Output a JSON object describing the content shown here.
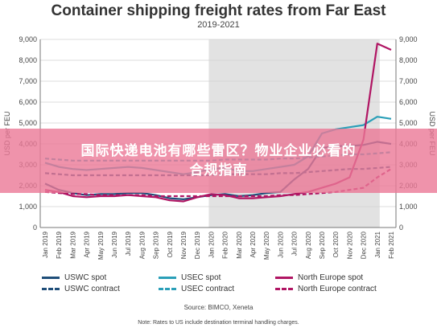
{
  "chart_data": {
    "type": "line",
    "title": "Container shipping freight rates from Far East",
    "subtitle": "2019-2021",
    "ylabel": "USD per FEU",
    "ylim": [
      0,
      9000
    ],
    "yticks": [
      "0",
      "1,000",
      "2,000",
      "3,000",
      "4,000",
      "5,000",
      "6,000",
      "7,000",
      "8,000",
      "9,000"
    ],
    "categories": [
      "Jan 2019",
      "Feb 2019",
      "Mar 2019",
      "Apr 2019",
      "May 2019",
      "Jun 2019",
      "Jul 2019",
      "Aug 2019",
      "Sep 2019",
      "Oct 2019",
      "Nov 2019",
      "Dec 2019",
      "Jan 2020",
      "Feb 2020",
      "Mar 2020",
      "Apr 2020",
      "May 2020",
      "Jun 2020",
      "Jul 2020",
      "Aug 2020",
      "Sep 2020",
      "Oct 2020",
      "Nov 2020",
      "Dec 2020",
      "Jan 2021",
      "Feb 2021"
    ],
    "shaded_region": [
      "Jan 2020",
      "Jan 2021"
    ],
    "series": [
      {
        "name": "USWC spot",
        "color": "#1f4e79",
        "dashed": false,
        "values": [
          2100,
          1800,
          1650,
          1550,
          1600,
          1600,
          1650,
          1650,
          1550,
          1400,
          1350,
          1450,
          1550,
          1600,
          1500,
          1550,
          1650,
          1700,
          2300,
          2800,
          3800,
          3900,
          3900,
          3950,
          4100,
          4000
        ]
      },
      {
        "name": "USWC contract",
        "color": "#1f4e79",
        "dashed": true,
        "values": [
          2600,
          2550,
          2500,
          2500,
          2500,
          2500,
          2500,
          2500,
          2500,
          2500,
          2500,
          2500,
          2500,
          2550,
          2550,
          2550,
          2550,
          2600,
          2600,
          2650,
          2700,
          2750,
          2800,
          2800,
          2850,
          2900
        ]
      },
      {
        "name": "USEC spot",
        "color": "#2a9fb8",
        "dashed": false,
        "values": [
          3100,
          2900,
          2800,
          2750,
          2800,
          2850,
          2900,
          2850,
          2750,
          2650,
          2550,
          2650,
          2800,
          2850,
          2700,
          2700,
          2800,
          2900,
          3000,
          3400,
          4500,
          4700,
          4800,
          4900,
          5300,
          5200
        ]
      },
      {
        "name": "USEC contract",
        "color": "#2a9fb8",
        "dashed": true,
        "values": [
          3300,
          3250,
          3200,
          3200,
          3200,
          3200,
          3200,
          3200,
          3200,
          3200,
          3200,
          3200,
          3200,
          3250,
          3250,
          3250,
          3250,
          3300,
          3300,
          3350,
          3400,
          3450,
          3500,
          3500,
          3550,
          3600
        ]
      },
      {
        "name": "North Europe spot",
        "color": "#b01563",
        "dashed": false,
        "values": [
          1800,
          1700,
          1500,
          1450,
          1500,
          1500,
          1550,
          1500,
          1450,
          1300,
          1250,
          1450,
          1600,
          1550,
          1400,
          1400,
          1450,
          1500,
          1600,
          1700,
          1900,
          2100,
          2400,
          4200,
          8800,
          8500
        ]
      },
      {
        "name": "North Europe contract",
        "color": "#b01563",
        "dashed": true,
        "values": [
          1700,
          1650,
          1600,
          1600,
          1550,
          1550,
          1550,
          1550,
          1500,
          1500,
          1500,
          1500,
          1500,
          1500,
          1500,
          1500,
          1500,
          1550,
          1550,
          1600,
          1650,
          1700,
          1800,
          1900,
          2400,
          2800
        ]
      }
    ]
  },
  "source": "Source: BIMCO, Xeneta",
  "note": "Note: Rates to US include destination terminal handling charges.",
  "banner": {
    "line1": "国际快递电池有哪些雷区？物业企业必看的",
    "line2": "合规指南"
  }
}
